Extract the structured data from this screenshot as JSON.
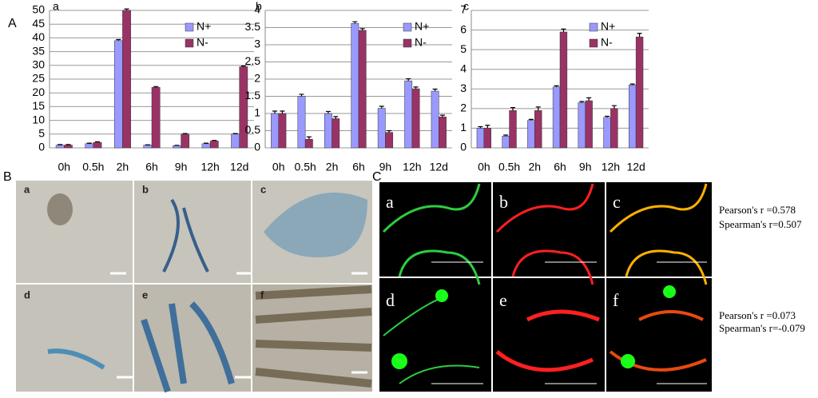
{
  "panel_letters": [
    "A",
    "B",
    "C"
  ],
  "chart_data": [
    {
      "type": "bar",
      "title": "a",
      "categories": [
        "0h",
        "0.5h",
        "2h",
        "6h",
        "9h",
        "12h",
        "12d"
      ],
      "series": [
        {
          "name": "N+",
          "color": "#9999ff",
          "values": [
            1,
            1.5,
            39,
            1,
            0.8,
            1.5,
            5
          ],
          "errors": [
            0.2,
            0.2,
            0.4,
            0.1,
            0.1,
            0.2,
            0.2
          ]
        },
        {
          "name": "N-",
          "color": "#993366",
          "values": [
            1,
            2,
            50,
            22,
            5,
            2.5,
            29.5
          ],
          "errors": [
            0.2,
            0.2,
            0.5,
            0.3,
            0.2,
            0.2,
            0.3
          ]
        }
      ],
      "ylim": [
        0,
        50
      ],
      "yticks": [
        0,
        5,
        10,
        15,
        20,
        25,
        30,
        35,
        40,
        45,
        50
      ],
      "grid": true
    },
    {
      "type": "bar",
      "title": "b",
      "categories": [
        "0h",
        "0.5h",
        "2h",
        "6h",
        "9h",
        "12h",
        "12d"
      ],
      "series": [
        {
          "name": "N+",
          "color": "#9999ff",
          "values": [
            1,
            1.5,
            1,
            3.62,
            1.15,
            1.95,
            1.65
          ],
          "errors": [
            0.07,
            0.06,
            0.06,
            0.05,
            0.06,
            0.06,
            0.06
          ]
        },
        {
          "name": "N-",
          "color": "#993366",
          "values": [
            1,
            0.25,
            0.85,
            3.42,
            0.45,
            1.72,
            0.9
          ],
          "errors": [
            0.07,
            0.07,
            0.06,
            0.05,
            0.05,
            0.05,
            0.05
          ]
        }
      ],
      "ylim": [
        0,
        4
      ],
      "yticks": [
        0,
        0.5,
        1,
        1.5,
        2,
        2.5,
        3,
        3.5,
        4
      ],
      "grid": true
    },
    {
      "type": "bar",
      "title": "c",
      "categories": [
        "0h",
        "0.5h",
        "2h",
        "6h",
        "9h",
        "12h",
        "12d"
      ],
      "series": [
        {
          "name": "N+",
          "color": "#9999ff",
          "values": [
            1,
            0.6,
            1.4,
            3.1,
            2.3,
            1.55,
            3.2
          ],
          "errors": [
            0.08,
            0.05,
            0.05,
            0.06,
            0.06,
            0.06,
            0.05
          ]
        },
        {
          "name": "N-",
          "color": "#993366",
          "values": [
            1,
            1.9,
            1.9,
            5.9,
            2.4,
            2,
            5.65
          ],
          "errors": [
            0.15,
            0.15,
            0.18,
            0.15,
            0.15,
            0.15,
            0.18
          ]
        }
      ],
      "ylim": [
        0,
        7
      ],
      "yticks": [
        0,
        1,
        2,
        3,
        4,
        5,
        6,
        7
      ],
      "grid": true
    }
  ],
  "photo_labels": [
    "a",
    "b",
    "c",
    "d",
    "e",
    "f"
  ],
  "confocal_labels": [
    "a",
    "b",
    "c",
    "d",
    "e",
    "f"
  ],
  "stats": [
    "Pearson's r =0.578",
    "Spearman's r=0.507",
    "Pearson's r =0.073",
    "Spearman's r=-0.079"
  ]
}
